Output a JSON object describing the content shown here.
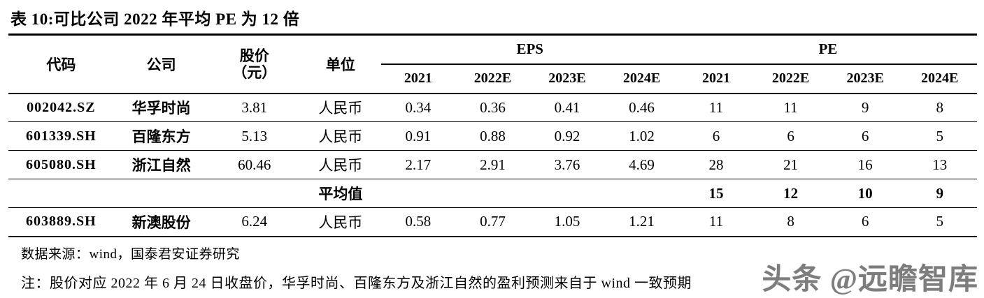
{
  "page": {
    "title": "表 10:可比公司 2022 年平均 PE 为 12 倍"
  },
  "table": {
    "headers": {
      "code": "代码",
      "company": "公司",
      "price_line1": "股价",
      "price_line2": "（元）",
      "unit": "单位",
      "eps_group": "EPS",
      "pe_group": "PE",
      "years": {
        "eps_2021": "2021",
        "eps_2022e": "2022E",
        "eps_2023e": "2023E",
        "eps_2024e": "2024E",
        "pe_2021": "2021",
        "pe_2022e": "2022E",
        "pe_2023e": "2023E",
        "pe_2024e": "2024E"
      }
    },
    "rows": [
      {
        "code": "002042.SZ",
        "company": "华孚时尚",
        "price": "3.81",
        "unit": "人民币",
        "eps_2021": "0.34",
        "eps_2022e": "0.36",
        "eps_2023e": "0.41",
        "eps_2024e": "0.46",
        "pe_2021": "11",
        "pe_2022e": "11",
        "pe_2023e": "9",
        "pe_2024e": "8"
      },
      {
        "code": "601339.SH",
        "company": "百隆东方",
        "price": "5.13",
        "unit": "人民币",
        "eps_2021": "0.91",
        "eps_2022e": "0.88",
        "eps_2023e": "0.92",
        "eps_2024e": "1.02",
        "pe_2021": "6",
        "pe_2022e": "6",
        "pe_2023e": "6",
        "pe_2024e": "5"
      },
      {
        "code": "605080.SH",
        "company": "浙江自然",
        "price": "60.46",
        "unit": "人民币",
        "eps_2021": "2.17",
        "eps_2022e": "2.91",
        "eps_2023e": "3.76",
        "eps_2024e": "4.69",
        "pe_2021": "28",
        "pe_2022e": "21",
        "pe_2023e": "16",
        "pe_2024e": "13"
      },
      {
        "code": "",
        "company": "",
        "price": "",
        "unit": "平均值",
        "eps_2021": "",
        "eps_2022e": "",
        "eps_2023e": "",
        "eps_2024e": "",
        "pe_2021": "15",
        "pe_2022e": "12",
        "pe_2023e": "10",
        "pe_2024e": "9"
      },
      {
        "code": "603889.SH",
        "company": "新澳股份",
        "price": "6.24",
        "unit": "人民币",
        "eps_2021": "0.58",
        "eps_2022e": "0.77",
        "eps_2023e": "1.05",
        "eps_2024e": "1.21",
        "pe_2021": "11",
        "pe_2022e": "8",
        "pe_2023e": "6",
        "pe_2024e": "5"
      }
    ]
  },
  "footer": {
    "source": "数据来源：wind，国泰君安证券研究",
    "note": "注：股价对应 2022 年 6 月 24 日收盘价，华孚时尚、百隆东方及浙江自然的盈利预测来自于 wind 一致预期"
  },
  "watermark": {
    "text": "头条 @远瞻智库"
  },
  "colors": {
    "text": "#000000",
    "background": "#ffffff",
    "rule": "#000000",
    "watermark_gray": "#7d7d7d"
  }
}
